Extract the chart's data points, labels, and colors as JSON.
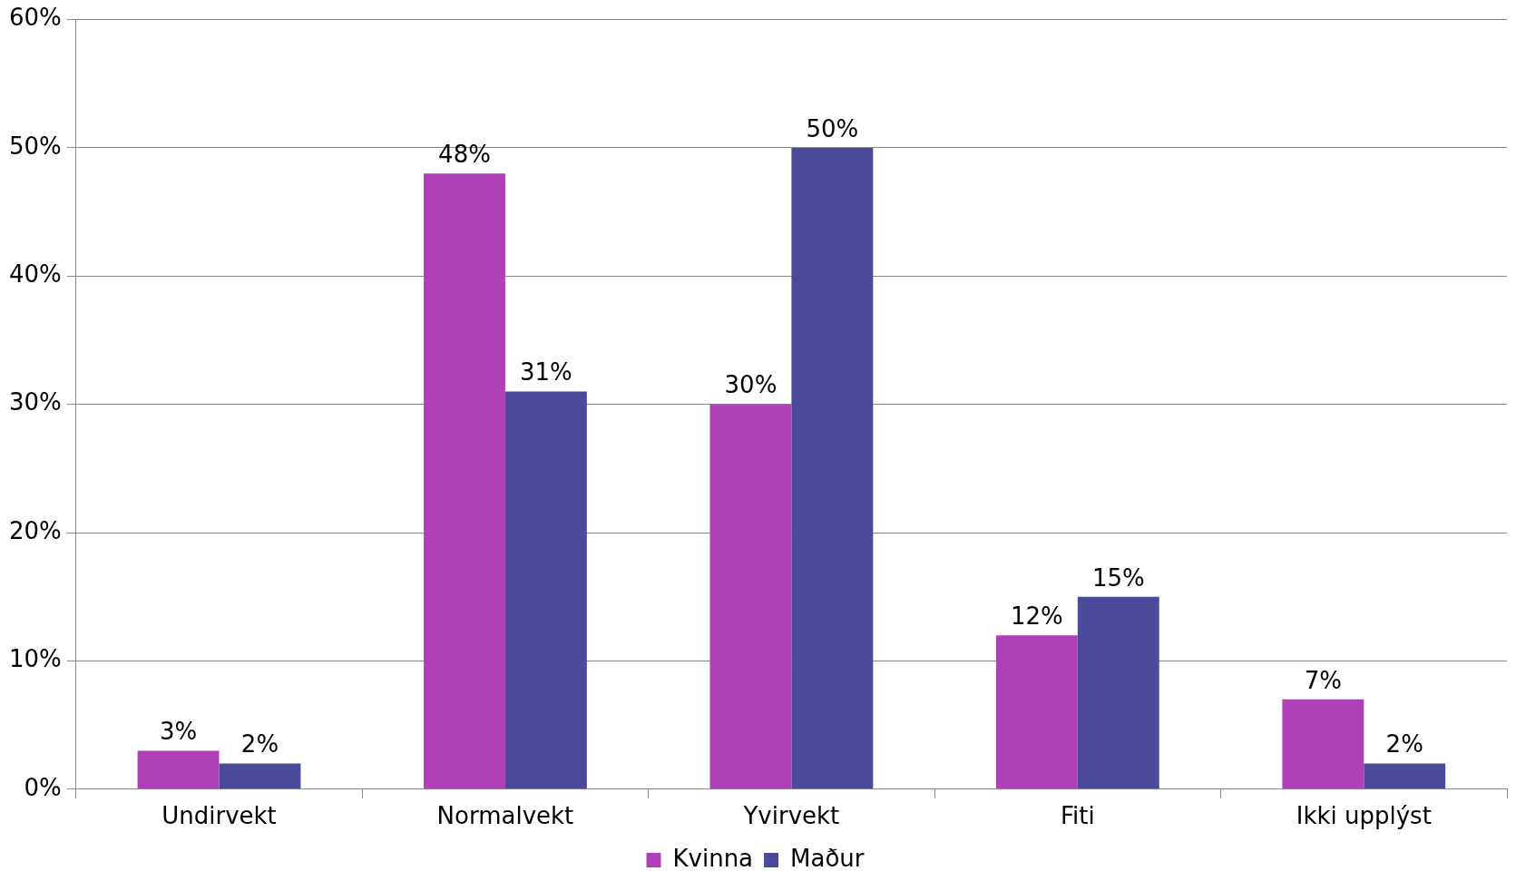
{
  "chart_data": {
    "type": "bar",
    "categories": [
      "Undirvekt",
      "Normalvekt",
      "Yvirvekt",
      "Fiti",
      "Ikki upplýst"
    ],
    "series": [
      {
        "name": "Kvinna",
        "color": "#b040b8",
        "values": [
          3,
          48,
          30,
          12,
          7
        ],
        "value_labels": [
          "3%",
          "48%",
          "30%",
          "12%",
          "7%"
        ]
      },
      {
        "name": "Maður",
        "color": "#4a4a98",
        "values": [
          2,
          31,
          50,
          15,
          2
        ],
        "value_labels": [
          "2%",
          "31%",
          "50%",
          "15%",
          "2%"
        ]
      }
    ],
    "ylim": [
      0,
      60
    ],
    "yticks": [
      {
        "value": 0,
        "label": "0%"
      },
      {
        "value": 10,
        "label": "10%"
      },
      {
        "value": 20,
        "label": "20%"
      },
      {
        "value": 30,
        "label": "30%"
      },
      {
        "value": 40,
        "label": "40%"
      },
      {
        "value": 50,
        "label": "50%"
      },
      {
        "value": 60,
        "label": "60%"
      }
    ],
    "grid": "y",
    "legend": "bottom"
  }
}
